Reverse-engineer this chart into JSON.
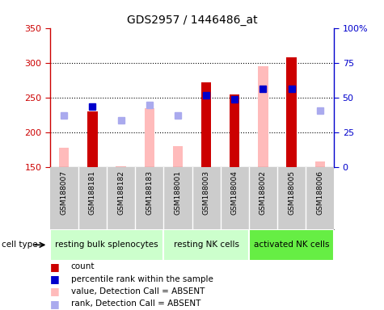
{
  "title": "GDS2957 / 1446486_at",
  "samples": [
    "GSM188007",
    "GSM188181",
    "GSM188182",
    "GSM188183",
    "GSM188001",
    "GSM188003",
    "GSM188004",
    "GSM188002",
    "GSM188005",
    "GSM188006"
  ],
  "cell_types": [
    {
      "label": "resting bulk splenocytes",
      "start": 0,
      "end": 4
    },
    {
      "label": "resting NK cells",
      "start": 4,
      "end": 7
    },
    {
      "label": "activated NK cells",
      "start": 7,
      "end": 10
    }
  ],
  "ct_colors": [
    "#ccffcc",
    "#ccffcc",
    "#66ee44"
  ],
  "count_values": [
    null,
    230,
    null,
    null,
    null,
    272,
    255,
    null,
    308,
    null
  ],
  "count_color": "#cc0000",
  "absent_bar_values": [
    178,
    null,
    152,
    235,
    180,
    null,
    null,
    295,
    null,
    158
  ],
  "absent_bar_color": "#ffbbbb",
  "percentile_rank_values": [
    null,
    237,
    null,
    null,
    null,
    254,
    248,
    263,
    263,
    null
  ],
  "percentile_rank_color": "#0000cc",
  "absent_rank_values": [
    224,
    null,
    218,
    240,
    224,
    null,
    null,
    null,
    null,
    232
  ],
  "absent_rank_color": "#aaaaee",
  "ymin": 150,
  "ymax": 350,
  "yticks": [
    150,
    200,
    250,
    300,
    350
  ],
  "right_ytick_pcts": [
    0,
    25,
    50,
    75,
    100
  ],
  "right_yticklabels": [
    "0",
    "25",
    "50",
    "75",
    "100%"
  ],
  "bar_width": 0.35,
  "left_tick_color": "#cc0000",
  "right_tick_color": "#0000cc",
  "bg_color": "#cccccc",
  "plot_bg": "#ffffff"
}
